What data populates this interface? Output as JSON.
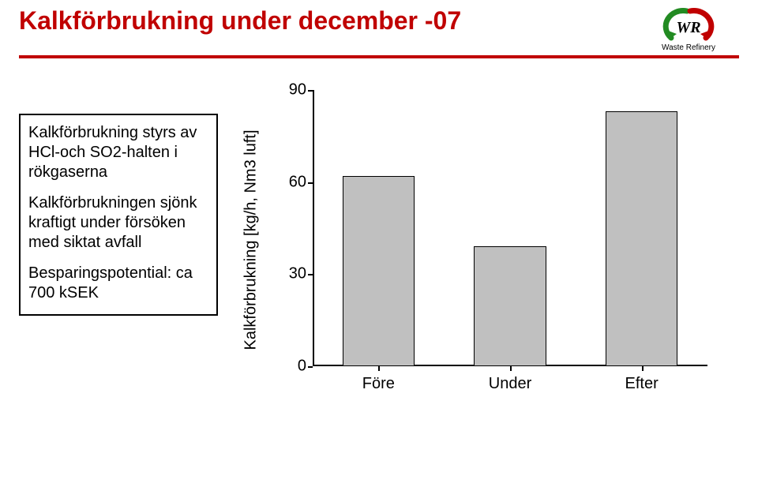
{
  "header": {
    "title": "Kalkförbrukning under december -07",
    "title_color": "#c00000",
    "title_fontsize": 32,
    "underline_color": "#c00000",
    "logo": {
      "name": "Waste Refinery",
      "arc_green": "#228b22",
      "arc_red": "#c00000",
      "text_color": "#000000"
    }
  },
  "textbox": {
    "items": [
      "Kalkförbrukning styrs av HCl-och SO2-halten i rökgaserna",
      "Kalkförbrukningen sjönk kraftigt under försöken med siktat avfall",
      "Besparingspotential: ca 700 kSEK"
    ],
    "border_color": "#000000",
    "fontsize": 20
  },
  "chart": {
    "type": "bar",
    "ylabel": "Kalkförbrukning [kg/h, Nm3 luft]",
    "label_fontsize": 20,
    "ylim": [
      0,
      90
    ],
    "yticks": [
      0,
      30,
      60,
      90
    ],
    "categories": [
      "Före",
      "Under",
      "Efter"
    ],
    "values": [
      62,
      39,
      83
    ],
    "bar_color": "#c0c0c0",
    "bar_border": "#000000",
    "axis_color": "#000000",
    "background_color": "#ffffff",
    "bar_width": 0.55,
    "tick_fontsize": 20
  }
}
